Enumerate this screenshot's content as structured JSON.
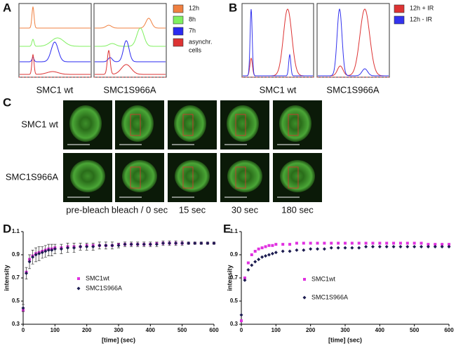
{
  "panel_a": {
    "letter": "A",
    "plots": [
      "SMC1 wt",
      "SMC1S966A"
    ],
    "legend": [
      {
        "label": [
          "12h"
        ],
        "color": "#f08040"
      },
      {
        "label": [
          "8h"
        ],
        "color": "#80f060"
      },
      {
        "label": [
          "7h"
        ],
        "color": "#2a2af0"
      },
      {
        "label": [
          "asynchr.",
          "cells"
        ],
        "color": "#dd3333"
      }
    ]
  },
  "panel_b": {
    "letter": "B",
    "plots": [
      "SMC1 wt",
      "SMC1S966A"
    ],
    "legend": [
      {
        "label": [
          "12h + IR"
        ],
        "color": "#dd3333"
      },
      {
        "label": [
          "12h - IR"
        ],
        "color": "#3333ee"
      }
    ]
  },
  "panel_c": {
    "letter": "C",
    "rows": [
      "SMC1 wt",
      "SMC1S966A"
    ],
    "columns": [
      "pre-bleach",
      "bleach / 0 sec",
      "15 sec",
      "30 sec",
      "180 sec"
    ]
  },
  "chart_data": [
    {
      "type": "scatter",
      "panel": "D",
      "x_label": "[time] (sec)",
      "y_label": "intensity",
      "xlim": [
        0,
        600
      ],
      "xticks": [
        0,
        100,
        200,
        300,
        400,
        500,
        600
      ],
      "ylim": [
        0.3,
        1.1
      ],
      "yticks": [
        0.3,
        0.5,
        0.7,
        0.9,
        1.1
      ],
      "x": [
        0,
        10,
        20,
        30,
        40,
        50,
        60,
        70,
        80,
        90,
        100,
        120,
        140,
        160,
        180,
        200,
        220,
        240,
        260,
        280,
        300,
        320,
        340,
        360,
        380,
        400,
        420,
        440,
        460,
        480,
        500,
        520,
        540,
        560,
        580,
        600
      ],
      "series": [
        {
          "name": "SMC1wt",
          "color": "#e030e0",
          "marker": "square",
          "values": [
            0.42,
            0.75,
            0.86,
            0.89,
            0.91,
            0.92,
            0.93,
            0.94,
            0.95,
            0.95,
            0.96,
            0.96,
            0.97,
            0.97,
            0.97,
            0.98,
            0.98,
            0.98,
            0.98,
            0.98,
            0.99,
            0.99,
            0.99,
            0.99,
            0.99,
            0.99,
            1.0,
            1.0,
            1.0,
            1.0,
            1.0,
            1.0,
            1.0,
            1.0,
            1.0,
            1.0
          ]
        },
        {
          "name": "SMC1S966A",
          "color": "#1c1c50",
          "marker": "diamond",
          "values": [
            0.44,
            0.74,
            0.84,
            0.88,
            0.9,
            0.91,
            0.92,
            0.93,
            0.94,
            0.94,
            0.95,
            0.95,
            0.96,
            0.96,
            0.97,
            0.97,
            0.97,
            0.98,
            0.98,
            0.98,
            0.98,
            0.99,
            0.99,
            0.99,
            0.99,
            0.99,
            0.99,
            1.0,
            1.0,
            1.0,
            1.0,
            1.0,
            1.0,
            1.0,
            1.0,
            1.0
          ],
          "errors": [
            0.03,
            0.05,
            0.06,
            0.06,
            0.06,
            0.06,
            0.05,
            0.05,
            0.05,
            0.05,
            0.04,
            0.04,
            0.04,
            0.04,
            0.03,
            0.03,
            0.03,
            0.03,
            0.03,
            0.03,
            0.02,
            0.02,
            0.02,
            0.02,
            0.02,
            0.02,
            0.02,
            0.02,
            0.02,
            0.02,
            0.02,
            0.01,
            0.01,
            0.01,
            0.01,
            0.01
          ]
        }
      ]
    },
    {
      "type": "scatter",
      "panel": "E",
      "x_label": "[time] (sec)",
      "y_label": "intensity",
      "xlim": [
        0,
        600
      ],
      "xticks": [
        0,
        100,
        200,
        300,
        400,
        500,
        600
      ],
      "ylim": [
        0.3,
        1.1
      ],
      "yticks": [
        0.3,
        0.5,
        0.7,
        0.9,
        1.1
      ],
      "x": [
        0,
        10,
        20,
        30,
        40,
        50,
        60,
        70,
        80,
        90,
        100,
        120,
        140,
        160,
        180,
        200,
        220,
        240,
        260,
        280,
        300,
        320,
        340,
        360,
        380,
        400,
        420,
        440,
        460,
        480,
        500,
        520,
        540,
        560,
        580,
        600
      ],
      "series": [
        {
          "name": "SMC1wt",
          "color": "#e030e0",
          "marker": "square",
          "values": [
            0.33,
            0.7,
            0.83,
            0.9,
            0.93,
            0.95,
            0.96,
            0.97,
            0.98,
            0.98,
            0.99,
            0.99,
            0.99,
            1.0,
            1.0,
            1.0,
            1.0,
            1.0,
            1.0,
            1.0,
            1.0,
            1.0,
            1.0,
            1.0,
            1.0,
            1.0,
            1.0,
            1.0,
            1.0,
            1.0,
            1.0,
            1.0,
            0.99,
            0.99,
            0.99,
            0.99
          ]
        },
        {
          "name": "SMC1S966A",
          "color": "#1c1c50",
          "marker": "diamond",
          "values": [
            0.38,
            0.68,
            0.77,
            0.81,
            0.84,
            0.86,
            0.88,
            0.89,
            0.9,
            0.91,
            0.92,
            0.93,
            0.93,
            0.94,
            0.94,
            0.95,
            0.95,
            0.95,
            0.96,
            0.96,
            0.96,
            0.96,
            0.96,
            0.97,
            0.97,
            0.97,
            0.97,
            0.97,
            0.97,
            0.97,
            0.97,
            0.97,
            0.97,
            0.97,
            0.97,
            0.97
          ]
        }
      ]
    }
  ]
}
